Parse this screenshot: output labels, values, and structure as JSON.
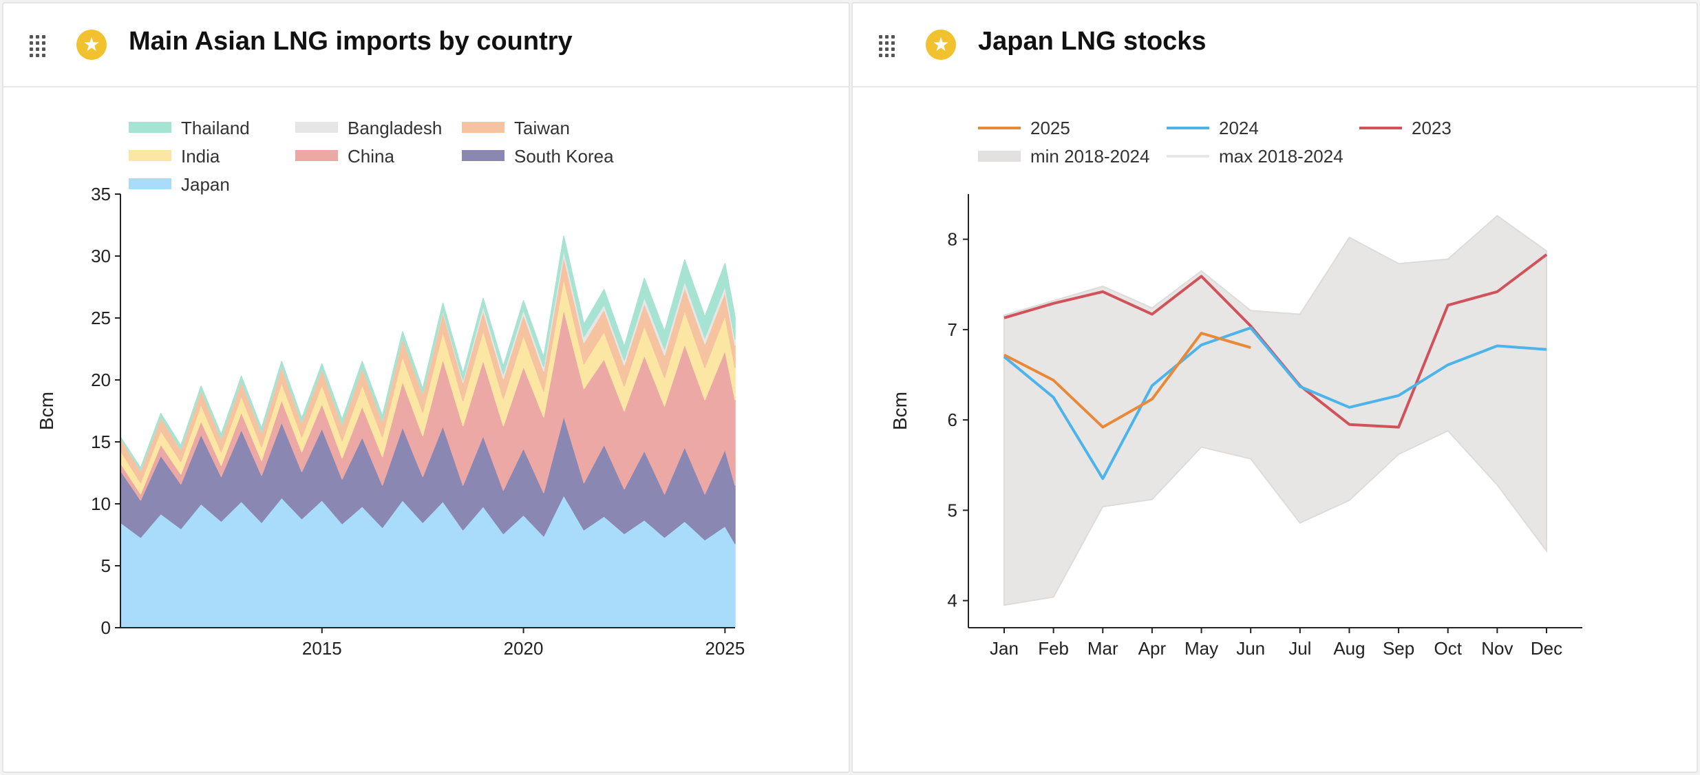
{
  "panels": [
    {
      "title": "Main Asian LNG imports by country",
      "star_icon": "star-icon",
      "drag_icon": "drag-handle-icon"
    },
    {
      "title": "Japan LNG stocks",
      "star_icon": "star-icon",
      "drag_icon": "drag-handle-icon"
    }
  ],
  "chart_data": [
    {
      "type": "area",
      "stacked": true,
      "title": "Main Asian LNG imports by country",
      "ylabel": "Bcm",
      "xlabel": "",
      "ylim": [
        0,
        35
      ],
      "yticks": [
        "0",
        "5",
        "10",
        "15",
        "20",
        "25",
        "30",
        "35"
      ],
      "xticks": [
        "2015",
        "2020",
        "2025"
      ],
      "xlim": [
        "2010-01",
        "2025-04"
      ],
      "legend_position": "top",
      "x": [
        "2010-01",
        "2010-07",
        "2011-01",
        "2011-07",
        "2012-01",
        "2012-07",
        "2013-01",
        "2013-07",
        "2014-01",
        "2014-07",
        "2015-01",
        "2015-07",
        "2016-01",
        "2016-07",
        "2017-01",
        "2017-07",
        "2018-01",
        "2018-07",
        "2019-01",
        "2019-07",
        "2020-01",
        "2020-07",
        "2021-01",
        "2021-07",
        "2022-01",
        "2022-07",
        "2023-01",
        "2023-07",
        "2024-01",
        "2024-07",
        "2025-01",
        "2025-04"
      ],
      "series": [
        {
          "name": "Japan",
          "color": "#a8dcfa",
          "values": [
            8.5,
            7.3,
            9.2,
            8.0,
            10.0,
            8.6,
            10.2,
            8.5,
            10.5,
            8.8,
            10.3,
            8.4,
            9.8,
            8.1,
            10.3,
            8.5,
            10.2,
            7.9,
            9.8,
            7.6,
            9.1,
            7.4,
            10.7,
            7.9,
            9.0,
            7.6,
            8.7,
            7.3,
            8.6,
            7.1,
            8.2,
            6.8
          ]
        },
        {
          "name": "South Korea",
          "color": "#8b87b3",
          "values": [
            4.2,
            3.0,
            4.7,
            3.6,
            5.6,
            3.6,
            5.8,
            3.8,
            6.1,
            3.8,
            5.8,
            3.6,
            5.6,
            3.4,
            5.9,
            3.7,
            6.1,
            3.6,
            5.7,
            3.5,
            5.4,
            3.5,
            6.4,
            3.8,
            5.8,
            3.6,
            5.6,
            3.5,
            6.0,
            3.7,
            6.2,
            4.7
          ]
        },
        {
          "name": "China",
          "color": "#eba8a4",
          "values": [
            0.6,
            0.5,
            0.9,
            0.8,
            1.1,
            0.9,
            1.4,
            1.2,
            1.8,
            1.6,
            2.0,
            1.7,
            2.5,
            2.3,
            3.7,
            3.3,
            5.4,
            4.8,
            6.1,
            5.2,
            6.6,
            6.1,
            8.6,
            7.6,
            6.9,
            6.3,
            7.7,
            7.1,
            8.3,
            7.6,
            8.0,
            6.9
          ]
        },
        {
          "name": "India",
          "color": "#fbe7a3",
          "values": [
            1.0,
            0.9,
            1.1,
            1.0,
            1.3,
            1.1,
            1.3,
            1.1,
            1.4,
            1.2,
            1.5,
            1.4,
            1.7,
            1.6,
            2.0,
            1.9,
            2.2,
            2.0,
            2.4,
            2.2,
            2.5,
            2.1,
            2.5,
            2.0,
            2.2,
            2.0,
            2.4,
            2.3,
            2.7,
            2.6,
            2.8,
            2.6
          ]
        },
        {
          "name": "Taiwan",
          "color": "#f6c3a1",
          "values": [
            1.0,
            1.0,
            1.1,
            1.0,
            1.2,
            1.1,
            1.2,
            1.2,
            1.3,
            1.2,
            1.3,
            1.3,
            1.4,
            1.3,
            1.5,
            1.5,
            1.6,
            1.5,
            1.6,
            1.6,
            1.7,
            1.6,
            1.8,
            1.7,
            1.8,
            1.7,
            1.8,
            1.8,
            1.9,
            1.9,
            1.9,
            1.8
          ]
        },
        {
          "name": "Bangladesh",
          "color": "#e6e6e6",
          "values": [
            0,
            0,
            0,
            0,
            0,
            0,
            0,
            0,
            0,
            0,
            0,
            0,
            0,
            0,
            0,
            0,
            0.1,
            0.2,
            0.4,
            0.4,
            0.4,
            0.4,
            0.5,
            0.5,
            0.4,
            0.4,
            0.5,
            0.5,
            0.5,
            0.5,
            0.5,
            0.5
          ]
        },
        {
          "name": "Thailand",
          "color": "#a7e3d2",
          "values": [
            0.1,
            0.2,
            0.3,
            0.3,
            0.3,
            0.3,
            0.4,
            0.3,
            0.4,
            0.3,
            0.4,
            0.4,
            0.5,
            0.4,
            0.5,
            0.4,
            0.6,
            0.5,
            0.6,
            0.6,
            0.7,
            0.7,
            1.1,
            1.0,
            1.2,
            1.1,
            1.5,
            1.4,
            1.7,
            1.7,
            1.8,
            1.8
          ]
        }
      ],
      "legend": [
        "Thailand",
        "Bangladesh",
        "Taiwan",
        "India",
        "China",
        "South Korea",
        "Japan"
      ]
    },
    {
      "type": "line",
      "title": "Japan LNG stocks",
      "ylabel": "Bcm",
      "xlabel": "",
      "ylim": [
        3.7,
        8.5
      ],
      "yticks": [
        "4",
        "5",
        "6",
        "7",
        "8"
      ],
      "categories": [
        "Jan",
        "Feb",
        "Mar",
        "Apr",
        "May",
        "Jun",
        "Jul",
        "Aug",
        "Sep",
        "Oct",
        "Nov",
        "Dec"
      ],
      "legend_position": "top",
      "band": {
        "min_name": "min 2018-2024",
        "max_name": "max 2018-2024",
        "min": [
          3.95,
          4.04,
          5.04,
          5.12,
          5.7,
          5.57,
          4.86,
          5.11,
          5.62,
          5.88,
          5.28,
          4.55
        ],
        "max": [
          7.16,
          7.32,
          7.48,
          7.24,
          7.65,
          7.21,
          7.17,
          8.02,
          7.73,
          7.78,
          8.26,
          7.87
        ],
        "color": "#e8e6e4"
      },
      "series": [
        {
          "name": "2025",
          "color": "#e8893a",
          "values": [
            6.72,
            6.44,
            5.92,
            6.23,
            6.96,
            6.8,
            null,
            null,
            null,
            null,
            null,
            null
          ]
        },
        {
          "name": "2024",
          "color": "#4cb4ea",
          "values": [
            6.7,
            6.25,
            5.35,
            6.38,
            6.83,
            7.02,
            6.37,
            6.14,
            6.27,
            6.61,
            6.82,
            6.78
          ]
        },
        {
          "name": "2023",
          "color": "#d0525a",
          "values": [
            7.13,
            7.29,
            7.42,
            7.17,
            7.59,
            7.04,
            6.38,
            5.95,
            5.92,
            7.27,
            7.42,
            7.83
          ]
        }
      ],
      "legend": [
        "2025",
        "2024",
        "2023",
        "min 2018-2024",
        "max 2018-2024"
      ]
    }
  ]
}
